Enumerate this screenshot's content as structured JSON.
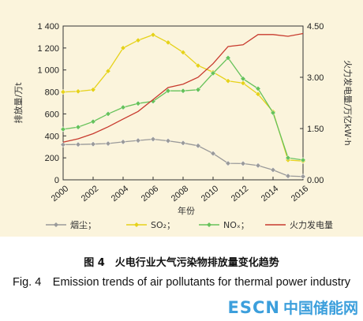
{
  "chart_data": {
    "type": "line",
    "xlabel": "年份",
    "ylabel_left": "排放量/万t",
    "ylabel_right": "火力发电量/万亿kW·h",
    "x_ticks": [
      "2000",
      "2002",
      "2004",
      "2006",
      "2008",
      "2010",
      "2012",
      "2014",
      "2016"
    ],
    "y_left_ticks": [
      "0",
      "200",
      "400",
      "600",
      "800",
      "1 000",
      "1 200",
      "1 400"
    ],
    "y_right_ticks": [
      "0.00",
      "1.50",
      "3.00",
      "4.50"
    ],
    "ylim_left": [
      0,
      1400
    ],
    "ylim_right": [
      0,
      4.5
    ],
    "xlim": [
      2000,
      2016
    ],
    "x": [
      2000,
      2001,
      2002,
      2003,
      2004,
      2005,
      2006,
      2007,
      2008,
      2009,
      2010,
      2011,
      2012,
      2013,
      2014,
      2015,
      2016
    ],
    "series": [
      {
        "name": "烟尘；",
        "axis": "left",
        "color": "#9a9a9a",
        "marker": "diamond",
        "values": [
          320,
          322,
          325,
          330,
          345,
          358,
          370,
          355,
          335,
          310,
          240,
          150,
          148,
          130,
          90,
          35,
          30
        ]
      },
      {
        "name": "SO₂；",
        "axis": "left",
        "color": "#e6d21a",
        "marker": "diamond",
        "values": [
          800,
          805,
          820,
          990,
          1200,
          1270,
          1320,
          1250,
          1160,
          1040,
          980,
          900,
          880,
          780,
          620,
          180,
          170
        ]
      },
      {
        "name": "NOₓ；",
        "axis": "left",
        "color": "#66c25a",
        "marker": "diamond",
        "values": [
          460,
          480,
          530,
          600,
          660,
          695,
          715,
          810,
          810,
          820,
          970,
          1110,
          920,
          830,
          610,
          200,
          180
        ]
      },
      {
        "name": "火力发电量",
        "axis": "right",
        "color": "#c83a2e",
        "marker": "none",
        "values": [
          1.1,
          1.2,
          1.35,
          1.55,
          1.78,
          2.0,
          2.35,
          2.7,
          2.8,
          3.0,
          3.4,
          3.9,
          3.95,
          4.25,
          4.25,
          4.2,
          4.28
        ]
      }
    ]
  },
  "captions": {
    "cn": "图 4　火电行业大气污染物排放量变化趋势",
    "en": "Fig. 4　Emission trends of air pollutants for thermal power industry"
  },
  "watermark": {
    "en": "ESCN",
    "cn": "中国储能网"
  }
}
